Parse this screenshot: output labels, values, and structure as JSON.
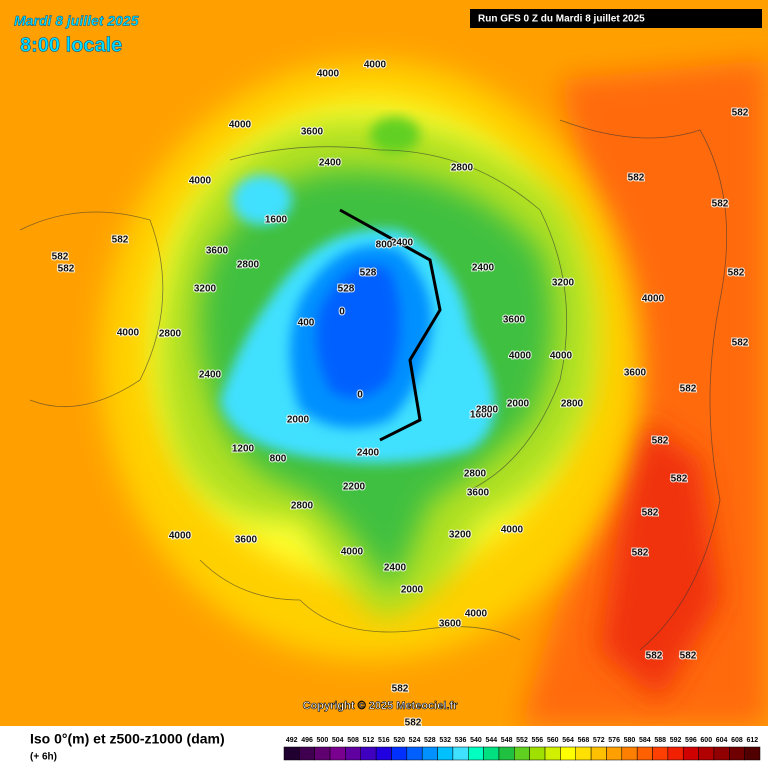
{
  "header": {
    "date": "Mardi 8 juillet 2025",
    "time": "8:00 locale",
    "run": "Run GFS 0 Z du Mardi 8 juillet 2025"
  },
  "copyright": "Copyright © 2025 Meteociel.fr",
  "legend": {
    "title": "Iso 0°(m) et z500-z1000 (dam)",
    "step": "(+ 6h)",
    "values": [
      492,
      496,
      500,
      504,
      508,
      512,
      516,
      520,
      524,
      528,
      532,
      536,
      540,
      544,
      548,
      552,
      556,
      560,
      564,
      568,
      572,
      576,
      580,
      584,
      588,
      592,
      596,
      600,
      604,
      608,
      612
    ],
    "colors": [
      "#200030",
      "#400050",
      "#600070",
      "#7a0090",
      "#6000a0",
      "#4000c0",
      "#2000e0",
      "#0030ff",
      "#0060ff",
      "#0090ff",
      "#00c0ff",
      "#40e0ff",
      "#00ffc0",
      "#00e080",
      "#20c040",
      "#60d020",
      "#a0e000",
      "#d0f000",
      "#ffff00",
      "#ffe000",
      "#ffc000",
      "#ffa000",
      "#ff8000",
      "#ff6000",
      "#ff4000",
      "#f02000",
      "#d00000",
      "#b00000",
      "#900000",
      "#700000",
      "#500000"
    ]
  },
  "map_labels": [
    "4000",
    "4000",
    "4000",
    "3600",
    "2400",
    "4000",
    "1600",
    "2800",
    "3600",
    "3200",
    "2800",
    "4000",
    "2400",
    "1200",
    "800",
    "2000",
    "0",
    "528",
    "528",
    "0",
    "400",
    "2400",
    "2200",
    "2800",
    "4000",
    "3600",
    "4000",
    "3200",
    "4000",
    "2400",
    "2000",
    "3600",
    "4000",
    "3600",
    "2800",
    "1600",
    "2000",
    "2800",
    "3600",
    "4000",
    "4000",
    "3600",
    "4000",
    "3200",
    "2400",
    "2800",
    "2400",
    "800",
    "2800",
    "582",
    "582",
    "582",
    "582",
    "582",
    "582",
    "582",
    "582",
    "582",
    "582",
    "582",
    "582",
    "582",
    "582",
    "582",
    "582",
    "582"
  ]
}
